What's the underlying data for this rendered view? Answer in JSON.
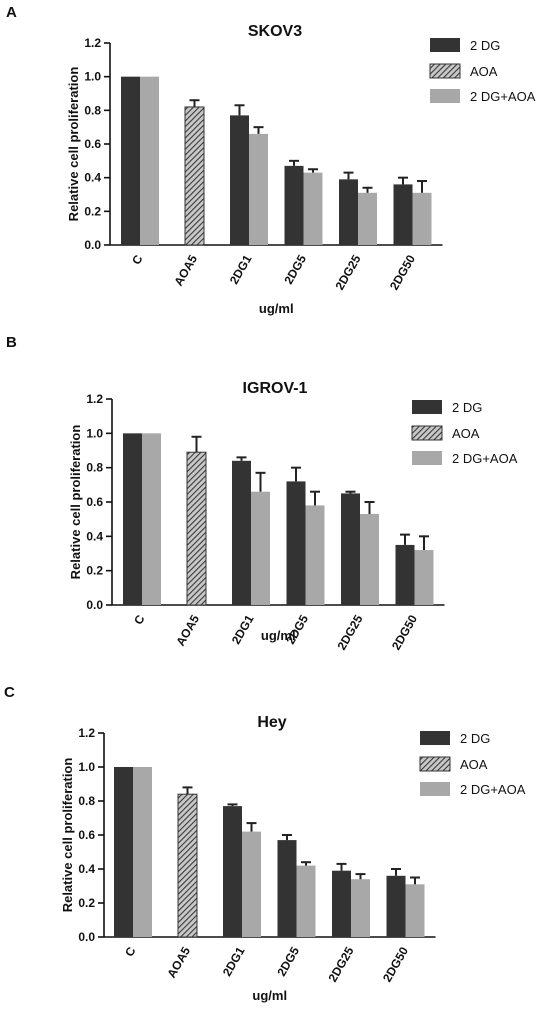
{
  "chart_data": [
    {
      "type": "bar",
      "panel_label": "A",
      "title": "SKOV3",
      "xlabel": "ug/ml",
      "ylabel": "Relative cell proliferation",
      "ylim": [
        0,
        1.2
      ],
      "yticks": [
        "0.0",
        "0.2",
        "0.4",
        "0.6",
        "0.8",
        "1.0",
        "1.2"
      ],
      "categories": [
        "C",
        "AOA5",
        "2DG1",
        "2DG5",
        "2DG25",
        "2DG50"
      ],
      "series": [
        {
          "name": "2 DG",
          "color": "#333333",
          "pattern": "solid",
          "values": [
            1.0,
            null,
            0.77,
            0.47,
            0.39,
            0.36
          ],
          "errors": [
            0,
            null,
            0.06,
            0.03,
            0.04,
            0.04
          ]
        },
        {
          "name": "AOA",
          "color": "#8a8a8a",
          "pattern": "hatch",
          "values": [
            null,
            0.82,
            null,
            null,
            null,
            null
          ],
          "errors": [
            null,
            0.04,
            null,
            null,
            null,
            null
          ]
        },
        {
          "name": "2 DG+AOA",
          "color": "#a8a8a8",
          "pattern": "solid",
          "values": [
            1.0,
            null,
            0.66,
            0.43,
            0.31,
            0.31
          ],
          "errors": [
            0,
            null,
            0.04,
            0.02,
            0.03,
            0.07
          ]
        }
      ],
      "legend_position": "right"
    },
    {
      "type": "bar",
      "panel_label": "B",
      "title": "IGROV-1",
      "xlabel": "ug/ml",
      "ylabel": "Relative cell proliferation",
      "ylim": [
        0,
        1.2
      ],
      "yticks": [
        "0.0",
        "0.2",
        "0.4",
        "0.6",
        "0.8",
        "1.0",
        "1.2"
      ],
      "categories": [
        "C",
        "AOA5",
        "2DG1",
        "2DG5",
        "2DG25",
        "2DG50"
      ],
      "series": [
        {
          "name": "2 DG",
          "color": "#333333",
          "pattern": "solid",
          "values": [
            1.0,
            null,
            0.84,
            0.72,
            0.65,
            0.35
          ],
          "errors": [
            0,
            null,
            0.02,
            0.08,
            0.01,
            0.06
          ]
        },
        {
          "name": "AOA",
          "color": "#8a8a8a",
          "pattern": "hatch",
          "values": [
            null,
            0.89,
            null,
            null,
            null,
            null
          ],
          "errors": [
            null,
            0.09,
            null,
            null,
            null,
            null
          ]
        },
        {
          "name": "2 DG+AOA",
          "color": "#a8a8a8",
          "pattern": "solid",
          "values": [
            1.0,
            null,
            0.66,
            0.58,
            0.53,
            0.32
          ],
          "errors": [
            0,
            null,
            0.11,
            0.08,
            0.07,
            0.08
          ]
        }
      ],
      "legend_position": "right"
    },
    {
      "type": "bar",
      "panel_label": "C",
      "title": "Hey",
      "xlabel": "ug/ml",
      "ylabel": "Relative cell proliferation",
      "ylim": [
        0,
        1.2
      ],
      "yticks": [
        "0.0",
        "0.2",
        "0.4",
        "0.6",
        "0.8",
        "1.0",
        "1.2"
      ],
      "categories": [
        "C",
        "AOA5",
        "2DG1",
        "2DG5",
        "2DG25",
        "2DG50"
      ],
      "series": [
        {
          "name": "2 DG",
          "color": "#333333",
          "pattern": "solid",
          "values": [
            1.0,
            null,
            0.77,
            0.57,
            0.39,
            0.36
          ],
          "errors": [
            0,
            null,
            0.01,
            0.03,
            0.04,
            0.04
          ]
        },
        {
          "name": "AOA",
          "color": "#8a8a8a",
          "pattern": "hatch",
          "values": [
            null,
            0.84,
            null,
            null,
            null,
            null
          ],
          "errors": [
            null,
            0.04,
            null,
            null,
            null,
            null
          ]
        },
        {
          "name": "2 DG+AOA",
          "color": "#a8a8a8",
          "pattern": "solid",
          "values": [
            1.0,
            null,
            0.62,
            0.42,
            0.34,
            0.31
          ],
          "errors": [
            0,
            null,
            0.05,
            0.02,
            0.03,
            0.04
          ]
        }
      ],
      "legend_position": "right"
    }
  ]
}
